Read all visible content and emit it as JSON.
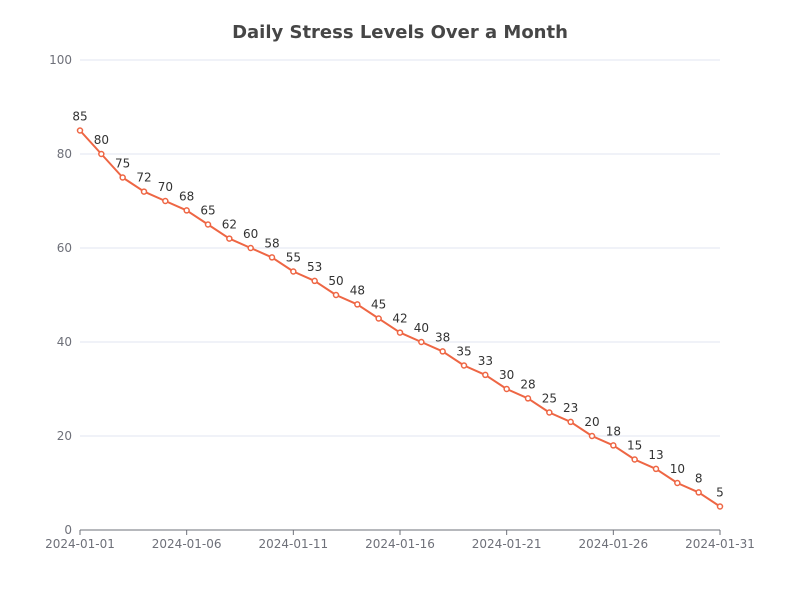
{
  "chart_data": {
    "type": "line",
    "title": "Daily Stress Levels Over a Month",
    "xlabel": "",
    "ylabel": "",
    "x": [
      "2024-01-01",
      "2024-01-02",
      "2024-01-03",
      "2024-01-04",
      "2024-01-05",
      "2024-01-06",
      "2024-01-07",
      "2024-01-08",
      "2024-01-09",
      "2024-01-10",
      "2024-01-11",
      "2024-01-12",
      "2024-01-13",
      "2024-01-14",
      "2024-01-15",
      "2024-01-16",
      "2024-01-17",
      "2024-01-18",
      "2024-01-19",
      "2024-01-20",
      "2024-01-21",
      "2024-01-22",
      "2024-01-23",
      "2024-01-24",
      "2024-01-25",
      "2024-01-26",
      "2024-01-27",
      "2024-01-28",
      "2024-01-29",
      "2024-01-30",
      "2024-01-31"
    ],
    "series": [
      {
        "values": [
          85,
          80,
          75,
          72,
          70,
          68,
          65,
          62,
          60,
          58,
          55,
          53,
          50,
          48,
          45,
          42,
          40,
          38,
          35,
          33,
          30,
          28,
          25,
          23,
          20,
          18,
          15,
          13,
          10,
          8,
          5
        ],
        "color": "#ee6644"
      }
    ],
    "x_tick_labels": [
      "2024-01-01",
      "2024-01-06",
      "2024-01-11",
      "2024-01-16",
      "2024-01-21",
      "2024-01-26",
      "2024-01-31"
    ],
    "y_ticks": [
      0,
      20,
      40,
      60,
      80,
      100
    ],
    "ylim": [
      0,
      100
    ],
    "grid": true,
    "legend": "none"
  }
}
